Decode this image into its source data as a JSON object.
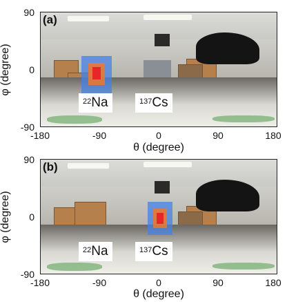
{
  "panels": [
    {
      "label": "(a)",
      "ylabel": "φ (degree)",
      "xlabel": "θ (degree)",
      "yticks": [
        "90",
        "0",
        "-90"
      ],
      "xticks": [
        "-180",
        "-90",
        "0",
        "90",
        "180"
      ],
      "sources": [
        {
          "mass": "22",
          "element": "Na"
        },
        {
          "mass": "137",
          "element": "Cs"
        }
      ],
      "hotspot": "22Na"
    },
    {
      "label": "(b)",
      "ylabel": "φ (degree)",
      "xlabel": "θ (degree)",
      "yticks": [
        "90",
        "0",
        "-90"
      ],
      "xticks": [
        "-180",
        "-90",
        "0",
        "90",
        "180"
      ],
      "sources": [
        {
          "mass": "22",
          "element": "Na"
        },
        {
          "mass": "137",
          "element": "Cs"
        }
      ],
      "hotspot": "137Cs"
    }
  ],
  "colors": {
    "hotspot_outer": "#4682e6",
    "hotspot_mid": "#f07828",
    "hotspot_core": "#e61e28"
  }
}
